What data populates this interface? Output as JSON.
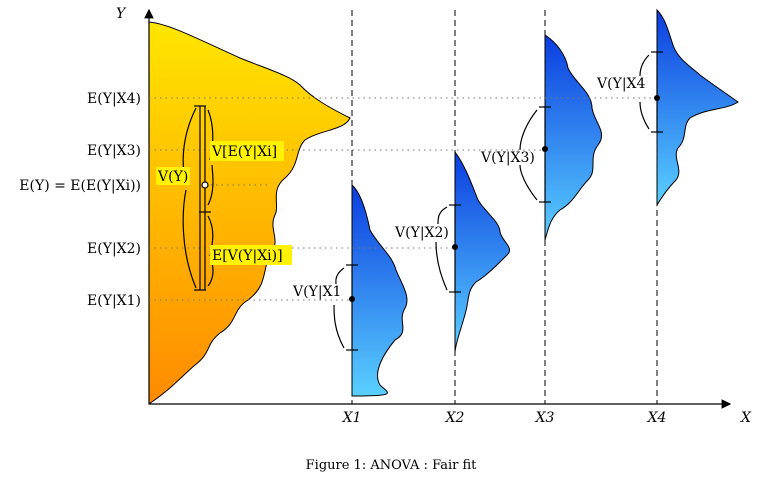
{
  "axes": {
    "y_label": "Y",
    "x_label": "X",
    "x_ticks": [
      "X1",
      "X2",
      "X3",
      "X4"
    ]
  },
  "y_labels": {
    "ex4": "E(Y|X4)",
    "ex3": "E(Y|X3)",
    "ey": "E(Y) = E(E(Y|Xi))",
    "ex2": "E(Y|X2)",
    "ex1": "E(Y|X1)"
  },
  "left_annotations": {
    "vy": "V(Y)",
    "between": "V[E(Y|Xi]",
    "within": "E[V(Y|Xi)]"
  },
  "variance_labels": [
    "V(Y|X1",
    "V(Y|X2)",
    "V(Y|X3)",
    "V(Y|X4"
  ],
  "caption": "Figure 1: ANOVA : Fair fit",
  "colors": {
    "marginal_top": "#ffe600",
    "marginal_bottom": "#ff8a00",
    "conditional_top": "#0b3de0",
    "conditional_bottom": "#5ad0ff",
    "highlight": "#fff200"
  }
}
